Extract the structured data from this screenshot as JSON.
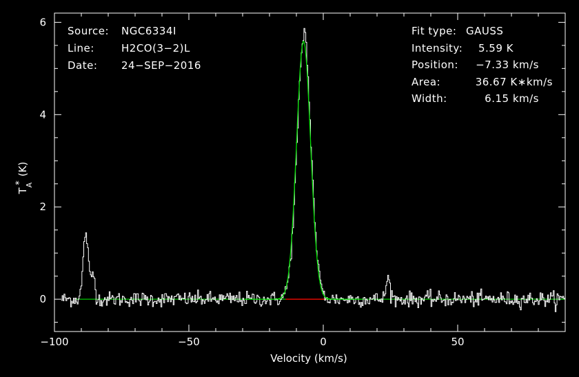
{
  "chart_data": {
    "type": "line",
    "xlabel": "Velocity (km/s)",
    "ylabel_main": "T",
    "ylabel_sup": "*",
    "ylabel_sub": "A",
    "ylabel_unit": "(K)",
    "xlim": [
      -100,
      90
    ],
    "ylim": [
      -0.7,
      6.2
    ],
    "x_ticks": [
      {
        "value": -100,
        "label": "−100"
      },
      {
        "value": -50,
        "label": "−50"
      },
      {
        "value": 0,
        "label": "0"
      },
      {
        "value": 50,
        "label": "50"
      }
    ],
    "y_ticks": [
      {
        "value": 0,
        "label": "0"
      },
      {
        "value": 2,
        "label": "2"
      },
      {
        "value": 4,
        "label": "4"
      },
      {
        "value": 6,
        "label": "6"
      }
    ],
    "grid": false,
    "info_left": [
      {
        "key": "Source:",
        "value": "NGC6334I"
      },
      {
        "key": "Line:",
        "value": "H2CO(3−2)L"
      },
      {
        "key": "Date:",
        "value": "24−SEP−2016"
      }
    ],
    "info_right": [
      {
        "key": "Fit type:",
        "value": "GAUSS"
      },
      {
        "key": "Intensity:",
        "value": "5.59 K"
      },
      {
        "key": "Position:",
        "value": "−7.33 km/s"
      },
      {
        "key": "Area:",
        "value": "36.67 K∗km/s"
      },
      {
        "key": "Width:",
        "value": "6.15 km/s"
      }
    ],
    "fit": {
      "type": "GAUSS",
      "intensity": 5.59,
      "position": -7.33,
      "width": 6.15,
      "area": 36.67,
      "window": [
        -14,
        1
      ]
    },
    "features": [
      {
        "center": -88.5,
        "peak": 1.45,
        "width": 2.2
      },
      {
        "center": -85.8,
        "peak": 0.55,
        "width": 1.6
      },
      {
        "center": 24.0,
        "peak": 0.45,
        "width": 1.8
      },
      {
        "center": -6.9,
        "peak": 0.3,
        "width": 1.2
      }
    ],
    "noise_rms": 0.08,
    "channel_width": 0.35,
    "colors": {
      "spectrum": "#ffffff",
      "fit": "#00e000",
      "baseline": "#00c800",
      "baseline_window": "#e00000",
      "axes": "#ffffff",
      "background": "#000000"
    }
  }
}
